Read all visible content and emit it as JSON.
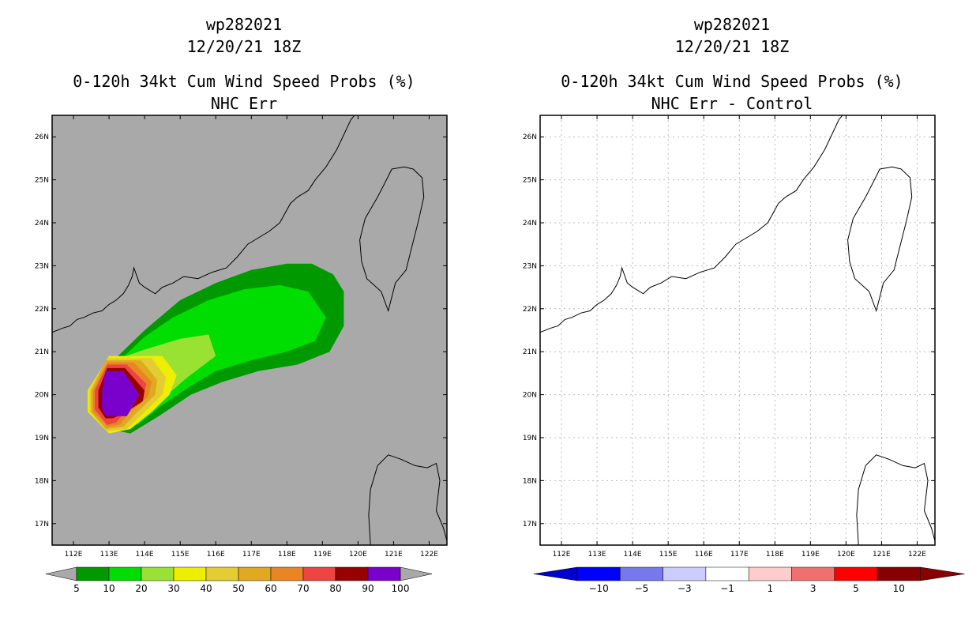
{
  "chart_data": [
    {
      "type": "heatmap",
      "storm_id": "wp282021",
      "datetime": "12/20/21 18Z",
      "title": "0-120h 34kt Cum Wind Speed Probs (%)",
      "subtitle": "NHC Err",
      "xlim": [
        111.4,
        122.5
      ],
      "ylim": [
        16.5,
        26.5
      ],
      "xticks": [
        112,
        113,
        114,
        115,
        116,
        117,
        118,
        119,
        120,
        121,
        122
      ],
      "yticks": [
        17,
        18,
        19,
        20,
        21,
        22,
        23,
        24,
        25,
        26
      ],
      "xtick_labels": [
        "112E",
        "113E",
        "114E",
        "115E",
        "116E",
        "117E",
        "118E",
        "119E",
        "120E",
        "121E",
        "122E"
      ],
      "ytick_labels": [
        "17N",
        "18N",
        "19N",
        "20N",
        "21N",
        "22N",
        "23N",
        "24N",
        "25N",
        "26N"
      ],
      "background": "#a9a9a9",
      "contour_levels": [
        5,
        10,
        20,
        30,
        40,
        50,
        60,
        70,
        80,
        90,
        100
      ],
      "colorbar_labels": [
        "5",
        "10",
        "20",
        "30",
        "40",
        "50",
        "60",
        "70",
        "80",
        "90",
        "100"
      ],
      "colors": [
        "#009900",
        "#00dd00",
        "#99e133",
        "#eeee00",
        "#e4cc33",
        "#e0a920",
        "#ea8524",
        "#ee4444",
        "#990000",
        "#7a00cc"
      ],
      "regions": [
        {
          "level": 5,
          "color": "#009900",
          "poly": [
            [
              113,
              20.7
            ],
            [
              114,
              21.5
            ],
            [
              115,
              22.2
            ],
            [
              116,
              22.6
            ],
            [
              117,
              22.9
            ],
            [
              118,
              23.05
            ],
            [
              118.7,
              23.05
            ],
            [
              119.3,
              22.8
            ],
            [
              119.6,
              22.4
            ],
            [
              119.6,
              21.6
            ],
            [
              119.2,
              21.0
            ],
            [
              118.3,
              20.7
            ],
            [
              117.2,
              20.55
            ],
            [
              116.2,
              20.3
            ],
            [
              115.3,
              20
            ],
            [
              114.4,
              19.5
            ],
            [
              113.6,
              19.1
            ],
            [
              113,
              19.2
            ]
          ]
        },
        {
          "level": 10,
          "color": "#00dd00",
          "poly": [
            [
              113.3,
              20.8
            ],
            [
              114,
              21.35
            ],
            [
              114.8,
              21.8
            ],
            [
              115.8,
              22.2
            ],
            [
              116.8,
              22.45
            ],
            [
              117.8,
              22.55
            ],
            [
              118.6,
              22.4
            ],
            [
              119.1,
              21.8
            ],
            [
              118.8,
              21.25
            ],
            [
              118,
              21.0
            ],
            [
              117,
              20.8
            ],
            [
              116,
              20.55
            ],
            [
              115.2,
              20.15
            ],
            [
              114.4,
              19.7
            ],
            [
              113.8,
              19.3
            ],
            [
              113.3,
              19.5
            ]
          ]
        },
        {
          "level": 20,
          "color": "#99e133",
          "poly": [
            [
              113.3,
              20.85
            ],
            [
              114.0,
              21.05
            ],
            [
              115,
              21.3
            ],
            [
              115.8,
              21.4
            ],
            [
              116.0,
              20.9
            ],
            [
              115.2,
              20.4
            ],
            [
              114.5,
              19.9
            ],
            [
              114.0,
              19.5
            ],
            [
              113.5,
              19.4
            ]
          ]
        },
        {
          "level": 30,
          "color": "#eeee00",
          "poly": [
            [
              113.0,
              20.9
            ],
            [
              114.5,
              20.9
            ],
            [
              114.9,
              20.45
            ],
            [
              114.7,
              20.0
            ],
            [
              114.2,
              19.6
            ],
            [
              113.6,
              19.2
            ],
            [
              113.0,
              19.1
            ],
            [
              112.4,
              19.6
            ],
            [
              112.4,
              20.1
            ]
          ]
        },
        {
          "level": 40,
          "color": "#e4cc33",
          "poly": [
            [
              112.95,
              20.85
            ],
            [
              114.2,
              20.85
            ],
            [
              114.6,
              20.4
            ],
            [
              114.5,
              20.0
            ],
            [
              114.0,
              19.6
            ],
            [
              113.5,
              19.2
            ],
            [
              112.95,
              19.15
            ],
            [
              112.45,
              19.6
            ],
            [
              112.45,
              20.1
            ]
          ]
        },
        {
          "level": 50,
          "color": "#e0a920",
          "poly": [
            [
              112.9,
              20.8
            ],
            [
              113.9,
              20.8
            ],
            [
              114.35,
              20.35
            ],
            [
              114.3,
              20.0
            ],
            [
              113.8,
              19.6
            ],
            [
              113.4,
              19.25
            ],
            [
              112.9,
              19.2
            ],
            [
              112.5,
              19.6
            ],
            [
              112.5,
              20.1
            ]
          ]
        },
        {
          "level": 60,
          "color": "#ea8524",
          "poly": [
            [
              112.95,
              20.75
            ],
            [
              113.7,
              20.75
            ],
            [
              114.2,
              20.3
            ],
            [
              114.1,
              19.95
            ],
            [
              113.6,
              19.6
            ],
            [
              113.3,
              19.3
            ],
            [
              112.95,
              19.25
            ],
            [
              112.55,
              19.6
            ],
            [
              112.55,
              20.1
            ]
          ]
        },
        {
          "level": 70,
          "color": "#ee4444",
          "poly": [
            [
              112.95,
              20.7
            ],
            [
              113.5,
              20.7
            ],
            [
              114.05,
              20.25
            ],
            [
              113.95,
              19.95
            ],
            [
              113.45,
              19.6
            ],
            [
              113.2,
              19.35
            ],
            [
              112.95,
              19.3
            ],
            [
              112.6,
              19.65
            ],
            [
              112.6,
              20.1
            ]
          ]
        },
        {
          "level": 80,
          "color": "#990000",
          "poly": [
            [
              112.95,
              20.62
            ],
            [
              113.45,
              20.62
            ],
            [
              114.0,
              20.1
            ],
            [
              113.95,
              19.85
            ],
            [
              113.4,
              19.55
            ],
            [
              113.1,
              19.45
            ],
            [
              112.9,
              19.45
            ],
            [
              112.7,
              19.7
            ],
            [
              112.7,
              20.1
            ]
          ]
        },
        {
          "level": 90,
          "color": "#7a00cc",
          "poly": [
            [
              112.9,
              20.55
            ],
            [
              113.4,
              20.55
            ],
            [
              113.85,
              20.0
            ],
            [
              113.5,
              19.5
            ],
            [
              112.9,
              19.5
            ],
            [
              112.8,
              19.7
            ],
            [
              112.8,
              20.1
            ]
          ]
        }
      ]
    },
    {
      "type": "heatmap",
      "storm_id": "wp282021",
      "datetime": "12/20/21 18Z",
      "title": "0-120h 34kt Cum Wind Speed Probs (%)",
      "subtitle": "NHC Err - Control",
      "xlim": [
        111.4,
        122.5
      ],
      "ylim": [
        16.5,
        26.5
      ],
      "xticks": [
        112,
        113,
        114,
        115,
        116,
        117,
        118,
        119,
        120,
        121,
        122
      ],
      "yticks": [
        17,
        18,
        19,
        20,
        21,
        22,
        23,
        24,
        25,
        26
      ],
      "xtick_labels": [
        "112E",
        "113E",
        "114E",
        "115E",
        "116E",
        "117E",
        "118E",
        "119E",
        "120E",
        "121E",
        "122E"
      ],
      "ytick_labels": [
        "17N",
        "18N",
        "19N",
        "20N",
        "21N",
        "22N",
        "23N",
        "24N",
        "25N",
        "26N"
      ],
      "grid": true,
      "background": "#ffffff",
      "contour_levels": [
        -10,
        -5,
        -3,
        -1,
        1,
        3,
        5,
        10
      ],
      "colorbar_labels": [
        "−10",
        "−5",
        "−3",
        "−1",
        "1",
        "3",
        "5",
        "10"
      ],
      "colors": [
        "#0000cc",
        "#0000ff",
        "#7777ee",
        "#ccccff",
        "#ffffff",
        "#ffcccc",
        "#f07070",
        "#ff0000",
        "#880000"
      ],
      "regions": []
    }
  ],
  "coastlines": {
    "china": [
      [
        111.4,
        21.45
      ],
      [
        111.7,
        21.55
      ],
      [
        111.9,
        21.6
      ],
      [
        112.1,
        21.75
      ],
      [
        112.3,
        21.8
      ],
      [
        112.55,
        21.9
      ],
      [
        112.8,
        21.95
      ],
      [
        113.0,
        22.1
      ],
      [
        113.2,
        22.2
      ],
      [
        113.4,
        22.35
      ],
      [
        113.55,
        22.55
      ],
      [
        113.65,
        22.75
      ],
      [
        113.7,
        22.95
      ],
      [
        113.85,
        22.6
      ],
      [
        114.0,
        22.5
      ],
      [
        114.3,
        22.35
      ],
      [
        114.5,
        22.5
      ],
      [
        114.8,
        22.6
      ],
      [
        115.1,
        22.75
      ],
      [
        115.5,
        22.7
      ],
      [
        115.9,
        22.85
      ],
      [
        116.3,
        22.95
      ],
      [
        116.6,
        23.2
      ],
      [
        116.9,
        23.5
      ],
      [
        117.2,
        23.65
      ],
      [
        117.5,
        23.8
      ],
      [
        117.8,
        24.0
      ],
      [
        118.1,
        24.45
      ],
      [
        118.3,
        24.6
      ],
      [
        118.6,
        24.75
      ],
      [
        118.8,
        25.0
      ],
      [
        119.1,
        25.3
      ],
      [
        119.4,
        25.7
      ],
      [
        119.6,
        26.05
      ],
      [
        119.8,
        26.4
      ],
      [
        120.0,
        26.6
      ]
    ],
    "taiwan": [
      [
        120.95,
        25.25
      ],
      [
        121.3,
        25.3
      ],
      [
        121.55,
        25.25
      ],
      [
        121.8,
        25.05
      ],
      [
        121.85,
        24.6
      ],
      [
        121.7,
        24.05
      ],
      [
        121.5,
        23.4
      ],
      [
        121.35,
        22.9
      ],
      [
        121.05,
        22.6
      ],
      [
        120.85,
        21.95
      ],
      [
        120.65,
        22.4
      ],
      [
        120.25,
        22.7
      ],
      [
        120.1,
        23.1
      ],
      [
        120.05,
        23.6
      ],
      [
        120.2,
        24.1
      ],
      [
        120.55,
        24.6
      ],
      [
        120.8,
        25.0
      ]
    ],
    "luzon": [
      [
        120.35,
        16.5
      ],
      [
        120.3,
        17.2
      ],
      [
        120.35,
        17.8
      ],
      [
        120.55,
        18.35
      ],
      [
        120.85,
        18.6
      ],
      [
        121.2,
        18.5
      ],
      [
        121.6,
        18.35
      ],
      [
        121.95,
        18.3
      ],
      [
        122.2,
        18.4
      ],
      [
        122.3,
        18.0
      ],
      [
        122.2,
        17.3
      ],
      [
        122.4,
        16.9
      ],
      [
        122.5,
        16.6
      ]
    ]
  }
}
